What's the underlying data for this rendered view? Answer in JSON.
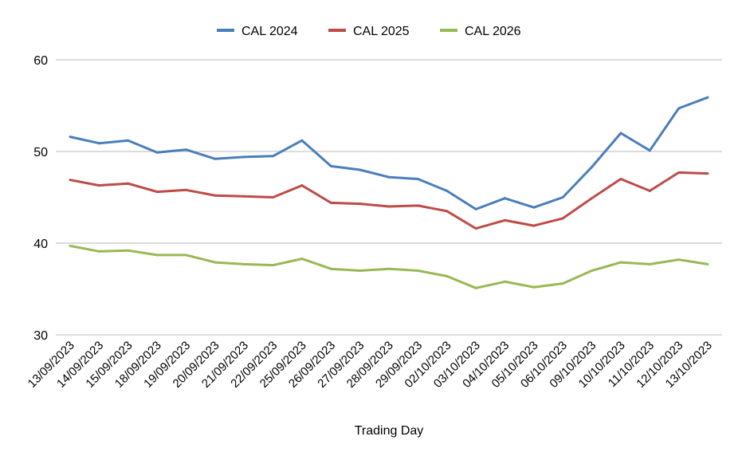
{
  "chart_data": {
    "type": "line",
    "title": "",
    "xlabel": "Trading Day",
    "ylabel": "",
    "ylim": [
      30,
      60
    ],
    "yticks": [
      "30",
      "40",
      "50",
      "60"
    ],
    "grid": true,
    "legend_position": "top",
    "categories": [
      "13/09/2023",
      "14/09/2023",
      "15/09/2023",
      "18/09/2023",
      "19/09/2023",
      "20/09/2023",
      "21/09/2023",
      "22/09/2023",
      "25/09/2023",
      "26/09/2023",
      "27/09/2023",
      "28/09/2023",
      "29/09/2023",
      "02/10/2023",
      "03/10/2023",
      "04/10/2023",
      "05/10/2023",
      "06/10/2023",
      "09/10/2023",
      "10/10/2023",
      "11/10/2023",
      "12/10/2023",
      "13/10/2023"
    ],
    "series": [
      {
        "name": "CAL 2024",
        "color": "#4a7ebb",
        "values": [
          51.6,
          50.9,
          51.2,
          49.9,
          50.2,
          49.2,
          49.4,
          49.5,
          51.2,
          48.4,
          48.0,
          47.2,
          47.0,
          45.7,
          43.7,
          44.9,
          43.9,
          45.0,
          48.3,
          52.0,
          50.1,
          54.7,
          55.9
        ]
      },
      {
        "name": "CAL 2025",
        "color": "#be4b48",
        "values": [
          46.9,
          46.3,
          46.5,
          45.6,
          45.8,
          45.2,
          45.1,
          45.0,
          46.3,
          44.4,
          44.3,
          44.0,
          44.1,
          43.5,
          41.6,
          42.5,
          41.9,
          42.7,
          44.9,
          47.0,
          45.7,
          47.7,
          47.6
        ]
      },
      {
        "name": "CAL 2026",
        "color": "#98b954",
        "values": [
          39.7,
          39.1,
          39.2,
          38.7,
          38.7,
          37.9,
          37.7,
          37.6,
          38.3,
          37.2,
          37.0,
          37.2,
          37.0,
          36.4,
          35.1,
          35.8,
          35.2,
          35.6,
          37.0,
          37.9,
          37.7,
          38.2,
          37.7
        ]
      }
    ]
  }
}
